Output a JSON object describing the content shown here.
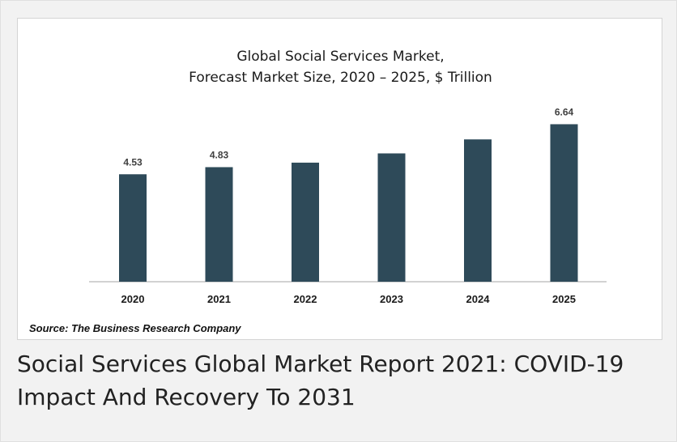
{
  "chart_data": {
    "type": "bar",
    "title_line1": "Global Social Services Market,",
    "title_line2": "Forecast Market Size, 2020 – 2025, $ Trillion",
    "categories": [
      "2020",
      "2021",
      "2022",
      "2023",
      "2024",
      "2025"
    ],
    "values": [
      4.53,
      4.83,
      5.02,
      5.41,
      6.0,
      6.64
    ],
    "data_labels": [
      "4.53",
      "4.83",
      "",
      "",
      "",
      "6.64"
    ],
    "xlabel": "",
    "ylabel": "",
    "ylim": [
      0,
      7
    ],
    "grid": false,
    "bar_color": "#2e4a59"
  },
  "source_text": "Source: The Business Research Company",
  "report_title": "Social Services Global Market Report 2021: COVID-19 Impact And Recovery To 2031"
}
